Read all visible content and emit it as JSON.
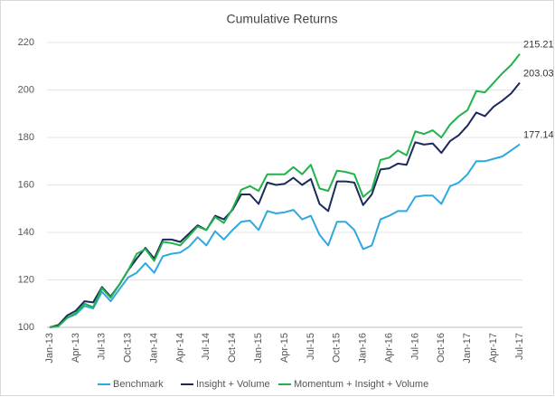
{
  "chart_data": {
    "type": "line",
    "title": "Cumulative Returns",
    "categories": [
      "Jan-13",
      null,
      null,
      "Apr-13",
      null,
      null,
      "Jul-13",
      null,
      null,
      "Oct-13",
      null,
      null,
      "Jan-14",
      null,
      null,
      "Apr-14",
      null,
      null,
      "Jul-14",
      null,
      null,
      "Oct-14",
      null,
      null,
      "Jan-15",
      null,
      null,
      "Apr-15",
      null,
      null,
      "Jul-15",
      null,
      null,
      "Oct-15",
      null,
      null,
      "Jan-16",
      null,
      null,
      "Apr-16",
      null,
      null,
      "Jul-16",
      null,
      null,
      "Oct-16",
      null,
      null,
      "Jan-17",
      null,
      null,
      "Apr-17",
      null,
      null,
      "Jul-17"
    ],
    "series": [
      {
        "name": "Benchmark",
        "color": "#2fa8e0",
        "values": [
          100,
          100.5,
          104,
          105.5,
          109,
          108,
          115,
          111,
          116,
          121,
          123,
          127,
          123,
          130,
          131,
          131.5,
          134,
          138,
          134.5,
          140.5,
          137,
          141,
          144.5,
          145,
          141,
          149,
          148,
          148.5,
          149.5,
          145.5,
          147,
          139,
          134.5,
          144.5,
          144.5,
          141,
          133,
          134.5,
          145.5,
          147,
          149,
          149,
          155,
          155.5,
          155.5,
          152,
          159.5,
          161,
          164.5,
          170,
          170,
          171,
          172,
          174.5,
          177.14
        ]
      },
      {
        "name": "Insight + Volume",
        "color": "#1b2a5a",
        "values": [
          100,
          101,
          105,
          107,
          111,
          110.5,
          117,
          113,
          118,
          124,
          129,
          133.5,
          129,
          137,
          137,
          136,
          139.5,
          143,
          141,
          147,
          145.5,
          149.5,
          156,
          156,
          152,
          161,
          160,
          160.5,
          163,
          160,
          162.5,
          152,
          149,
          161.5,
          161.5,
          161,
          151.5,
          156,
          166.5,
          167,
          169,
          168.5,
          178,
          177,
          177.5,
          173.5,
          178.5,
          181,
          185,
          190.5,
          189,
          193,
          195.5,
          198.5,
          203.03
        ]
      },
      {
        "name": "Momentum + Insight + Volume",
        "color": "#22b24c",
        "values": [
          100,
          100.5,
          104,
          106,
          110,
          108.5,
          116.5,
          112.5,
          118,
          124,
          131,
          133,
          128,
          136,
          135.5,
          134.5,
          138.5,
          142.5,
          141,
          146.5,
          144,
          150,
          158,
          159.5,
          157.5,
          164.5,
          164.5,
          164.5,
          167.5,
          164.5,
          168.5,
          158.5,
          157.5,
          166,
          165.5,
          164.5,
          155,
          158,
          170.5,
          171.5,
          174.5,
          172.5,
          182.5,
          181.5,
          183,
          180,
          185.5,
          189,
          191.5,
          199.5,
          199,
          203,
          207,
          210.5,
          215.21
        ]
      }
    ],
    "ylim": [
      100,
      220
    ],
    "yticks": [
      100,
      120,
      140,
      160,
      180,
      200,
      220
    ],
    "grid": true
  }
}
